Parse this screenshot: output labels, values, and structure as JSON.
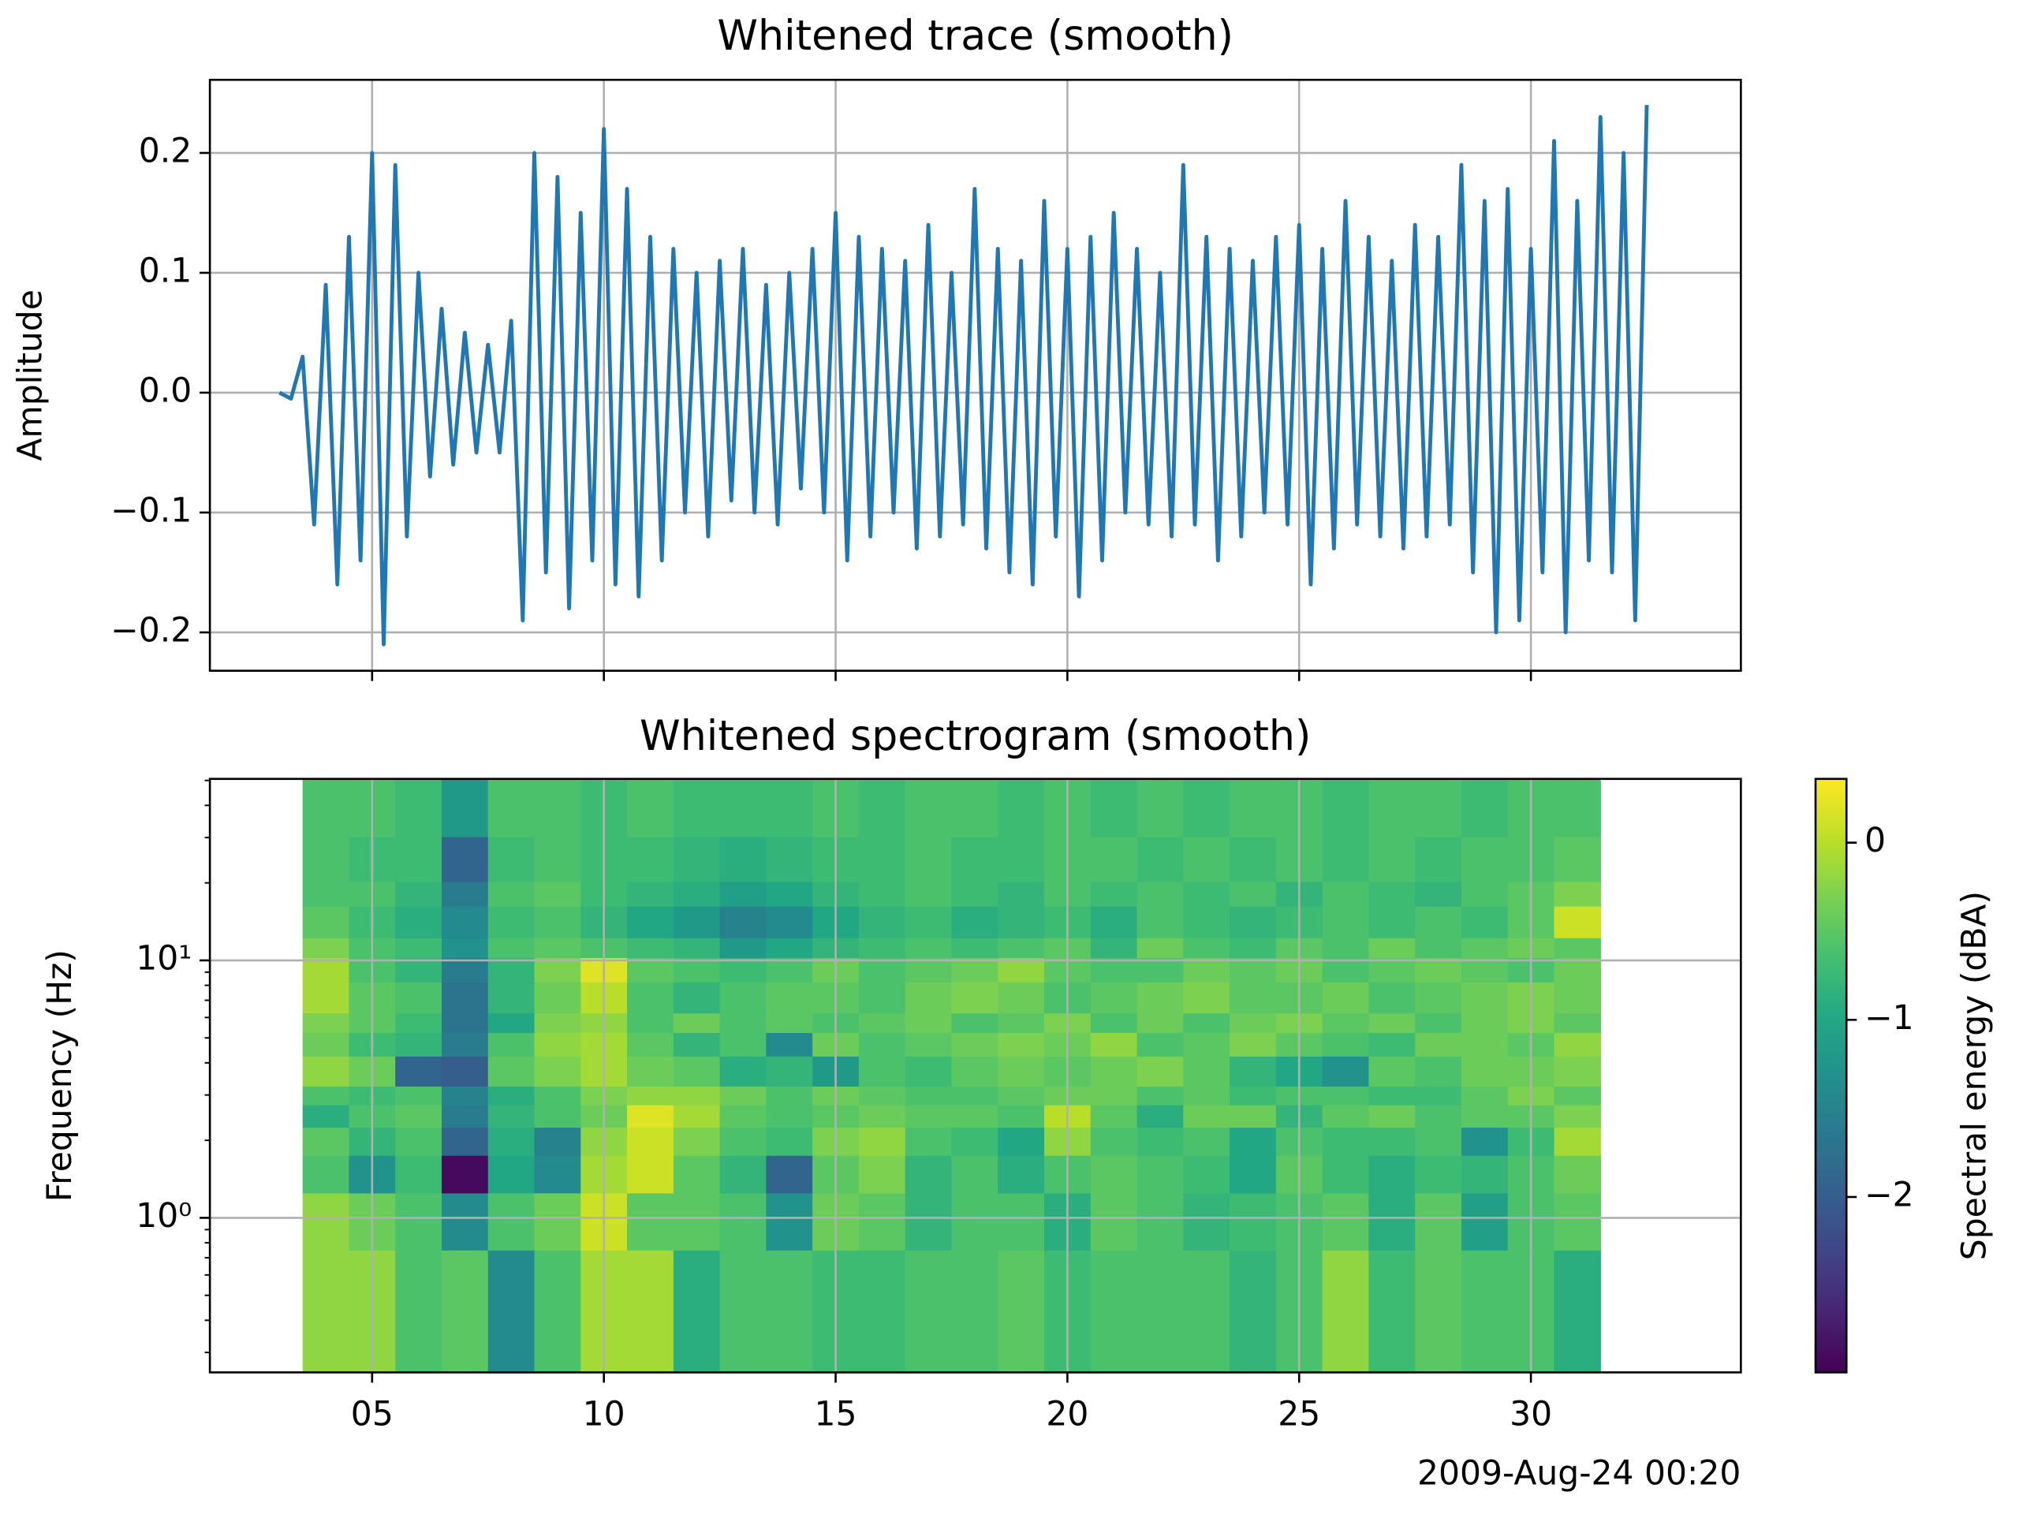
{
  "chart_data": [
    {
      "type": "line",
      "title": "Whitened trace (smooth)",
      "ylabel": "Amplitude",
      "color": "#1f77b4",
      "grid": true,
      "xlim": [
        1.5,
        34.53
      ],
      "ylim": [
        -0.232,
        0.261
      ],
      "xticks": [
        5,
        10,
        15,
        20,
        25,
        30
      ],
      "yticks": [
        {
          "value": -0.2,
          "label": "−0.2"
        },
        {
          "value": -0.1,
          "label": "−0.1"
        },
        {
          "value": 0,
          "label": "0.0"
        },
        0.1,
        0.2
      ],
      "x": [
        3.0,
        3.25,
        3.5,
        3.75,
        4.0,
        4.25,
        4.5,
        4.75,
        5.0,
        5.25,
        5.5,
        5.75,
        6.0,
        6.25,
        6.5,
        6.75,
        7.0,
        7.25,
        7.5,
        7.75,
        8.0,
        8.25,
        8.5,
        8.75,
        9.0,
        9.25,
        9.5,
        9.75,
        10.0,
        10.25,
        10.5,
        10.75,
        11.0,
        11.25,
        11.5,
        11.75,
        12.0,
        12.25,
        12.5,
        12.75,
        13.0,
        13.25,
        13.5,
        13.75,
        14.0,
        14.25,
        14.5,
        14.75,
        15.0,
        15.25,
        15.5,
        15.75,
        16.0,
        16.25,
        16.5,
        16.75,
        17.0,
        17.25,
        17.5,
        17.75,
        18.0,
        18.25,
        18.5,
        18.75,
        19.0,
        19.25,
        19.5,
        19.75,
        20.0,
        20.25,
        20.5,
        20.75,
        21.0,
        21.25,
        21.5,
        21.75,
        22.0,
        22.25,
        22.5,
        22.75,
        23.0,
        23.25,
        23.5,
        23.75,
        24.0,
        24.25,
        24.5,
        24.75,
        25.0,
        25.25,
        25.5,
        25.75,
        26.0,
        26.25,
        26.5,
        26.75,
        27.0,
        27.25,
        27.5,
        27.75,
        28.0,
        28.25,
        28.5,
        28.75,
        29.0,
        29.25,
        29.5,
        29.75,
        30.0,
        30.25,
        30.5,
        30.75,
        31.0,
        31.25,
        31.5,
        31.75,
        32.0,
        32.25,
        32.5
      ],
      "values": [
        0.0,
        -0.005,
        0.03,
        -0.11,
        0.09,
        -0.16,
        0.13,
        -0.14,
        0.2,
        -0.21,
        0.19,
        -0.12,
        0.1,
        -0.07,
        0.07,
        -0.06,
        0.05,
        -0.05,
        0.04,
        -0.05,
        0.06,
        -0.19,
        0.2,
        -0.15,
        0.18,
        -0.18,
        0.15,
        -0.14,
        0.22,
        -0.16,
        0.17,
        -0.17,
        0.13,
        -0.14,
        0.12,
        -0.1,
        0.1,
        -0.12,
        0.11,
        -0.09,
        0.12,
        -0.1,
        0.09,
        -0.11,
        0.1,
        -0.08,
        0.12,
        -0.1,
        0.15,
        -0.14,
        0.13,
        -0.12,
        0.12,
        -0.1,
        0.11,
        -0.13,
        0.14,
        -0.12,
        0.1,
        -0.11,
        0.17,
        -0.13,
        0.12,
        -0.15,
        0.11,
        -0.16,
        0.16,
        -0.12,
        0.12,
        -0.17,
        0.13,
        -0.14,
        0.15,
        -0.1,
        0.12,
        -0.11,
        0.1,
        -0.12,
        0.19,
        -0.11,
        0.13,
        -0.14,
        0.12,
        -0.12,
        0.11,
        -0.1,
        0.13,
        -0.11,
        0.14,
        -0.16,
        0.12,
        -0.13,
        0.16,
        -0.11,
        0.13,
        -0.12,
        0.11,
        -0.13,
        0.14,
        -0.12,
        0.13,
        -0.11,
        0.19,
        -0.15,
        0.16,
        -0.2,
        0.17,
        -0.19,
        0.12,
        -0.15,
        0.21,
        -0.2,
        0.16,
        -0.14,
        0.23,
        -0.15,
        0.2,
        -0.19,
        0.24
      ]
    },
    {
      "type": "heatmap",
      "title": "Whitened spectrogram (smooth)",
      "ylabel": "Frequency (Hz)",
      "ylog": true,
      "grid": true,
      "colormap": "viridis",
      "colorbar_label": "Spectral energy (dBA)",
      "x_offset_label": "2009-Aug-24 00:20",
      "xlim": [
        1.5,
        34.53
      ],
      "ylim": [
        0.251,
        50.7
      ],
      "clim": [
        -2.99,
        0.36
      ],
      "xticks": [
        {
          "value": 5,
          "label": "05"
        },
        10,
        15,
        20,
        25,
        30
      ],
      "yticks": [
        {
          "value": 1,
          "label": "10⁰"
        },
        {
          "value": 10,
          "label": "10¹"
        }
      ],
      "yminorticks": [
        0.3,
        0.4,
        0.5,
        0.6,
        0.7,
        0.8,
        0.9,
        2,
        3,
        4,
        5,
        6,
        7,
        8,
        9,
        20,
        30,
        40,
        50
      ],
      "cticks": [
        {
          "value": -2,
          "label": "−2"
        },
        {
          "value": -1,
          "label": "−1"
        },
        0
      ],
      "x_edges": [
        3.5,
        4.5,
        5.5,
        6.5,
        7.5,
        8.5,
        9.5,
        10.5,
        11.5,
        12.5,
        13.5,
        14.5,
        15.5,
        16.5,
        17.5,
        18.5,
        19.5,
        20.5,
        21.5,
        22.5,
        23.5,
        24.5,
        25.5,
        26.5,
        27.5,
        28.5,
        29.5,
        30.5,
        31.5
      ],
      "y_edges": [
        0.25,
        0.75,
        1.25,
        1.75,
        2.25,
        2.75,
        3.25,
        4.25,
        5.25,
        6.25,
        8.25,
        10.25,
        12.25,
        16.25,
        20.25,
        30.25,
        50.25
      ],
      "z": [
        [
          -0.2,
          -0.2,
          -0.6,
          -0.5,
          -1.4,
          -0.6,
          -0.1,
          -0.1,
          -0.9,
          -0.6,
          -0.6,
          -0.7,
          -0.7,
          -0.6,
          -0.6,
          -0.5,
          -0.7,
          -0.6,
          -0.6,
          -0.6,
          -0.8,
          -0.6,
          -0.2,
          -0.7,
          -0.5,
          -0.6,
          -0.6,
          -0.9
        ],
        [
          -0.2,
          -0.4,
          -0.6,
          -1.4,
          -0.6,
          -0.4,
          0.1,
          -0.5,
          -0.5,
          -0.6,
          -1.3,
          -0.4,
          -0.5,
          -0.8,
          -0.6,
          -0.6,
          -0.9,
          -0.5,
          -0.6,
          -0.8,
          -0.7,
          -0.6,
          -0.5,
          -0.9,
          -0.5,
          -1.1,
          -0.6,
          -0.5
        ],
        [
          -0.6,
          -1.3,
          -0.7,
          -2.9,
          -1.0,
          -1.4,
          -0.1,
          0.1,
          -0.5,
          -0.8,
          -1.9,
          -0.5,
          -0.3,
          -0.8,
          -0.6,
          -0.9,
          -0.6,
          -0.5,
          -0.6,
          -0.7,
          -1.0,
          -0.5,
          -0.7,
          -0.9,
          -0.7,
          -0.8,
          -0.6,
          -0.4
        ],
        [
          -0.5,
          -0.8,
          -0.6,
          -1.9,
          -0.9,
          -1.5,
          -0.2,
          0.1,
          -0.3,
          -0.6,
          -0.7,
          -0.3,
          -0.2,
          -0.6,
          -0.7,
          -1.0,
          -0.2,
          -0.6,
          -0.7,
          -0.6,
          -1.0,
          -0.6,
          -0.7,
          -0.7,
          -0.6,
          -1.3,
          -0.7,
          -0.1
        ],
        [
          -0.9,
          -0.6,
          -0.5,
          -1.6,
          -0.8,
          -0.6,
          -0.4,
          0.2,
          -0.1,
          -0.5,
          -0.6,
          -0.5,
          -0.4,
          -0.5,
          -0.5,
          -0.6,
          0.0,
          -0.5,
          -0.9,
          -0.4,
          -0.4,
          -0.8,
          -0.5,
          -0.4,
          -0.6,
          -0.5,
          -0.5,
          -0.3
        ],
        [
          -0.6,
          -0.7,
          -0.6,
          -1.5,
          -0.9,
          -0.6,
          -0.3,
          -0.2,
          -0.2,
          -0.4,
          -0.6,
          -0.4,
          -0.5,
          -0.6,
          -0.6,
          -0.5,
          -0.4,
          -0.4,
          -0.6,
          -0.5,
          -0.7,
          -0.6,
          -0.6,
          -0.7,
          -0.7,
          -0.5,
          -0.3,
          -0.5
        ],
        [
          -0.2,
          -0.4,
          -1.9,
          -2.0,
          -0.5,
          -0.3,
          -0.1,
          -0.4,
          -0.5,
          -0.9,
          -0.8,
          -1.2,
          -0.6,
          -0.7,
          -0.5,
          -0.4,
          -0.5,
          -0.4,
          -0.3,
          -0.5,
          -0.8,
          -1.0,
          -1.3,
          -0.5,
          -0.6,
          -0.4,
          -0.4,
          -0.3
        ],
        [
          -0.4,
          -0.7,
          -0.8,
          -1.6,
          -0.6,
          -0.2,
          -0.1,
          -0.5,
          -0.8,
          -0.6,
          -1.4,
          -0.4,
          -0.6,
          -0.5,
          -0.4,
          -0.3,
          -0.4,
          -0.2,
          -0.6,
          -0.5,
          -0.3,
          -0.5,
          -0.6,
          -0.7,
          -0.4,
          -0.4,
          -0.5,
          -0.2
        ],
        [
          -0.3,
          -0.5,
          -0.7,
          -1.7,
          -1.0,
          -0.3,
          -0.2,
          -0.6,
          -0.4,
          -0.6,
          -0.5,
          -0.6,
          -0.5,
          -0.4,
          -0.6,
          -0.5,
          -0.3,
          -0.6,
          -0.4,
          -0.6,
          -0.4,
          -0.3,
          -0.5,
          -0.4,
          -0.6,
          -0.4,
          -0.3,
          -0.5
        ],
        [
          -0.1,
          -0.5,
          -0.6,
          -1.7,
          -0.8,
          -0.4,
          0.0,
          -0.6,
          -0.8,
          -0.6,
          -0.5,
          -0.5,
          -0.6,
          -0.4,
          -0.3,
          -0.4,
          -0.6,
          -0.5,
          -0.4,
          -0.3,
          -0.5,
          -0.5,
          -0.4,
          -0.6,
          -0.5,
          -0.4,
          -0.3,
          -0.4
        ],
        [
          -0.1,
          -0.6,
          -0.8,
          -1.6,
          -0.8,
          -0.3,
          0.2,
          -0.5,
          -0.6,
          -0.7,
          -0.6,
          -0.4,
          -0.6,
          -0.5,
          -0.4,
          -0.2,
          -0.5,
          -0.6,
          -0.6,
          -0.4,
          -0.5,
          -0.4,
          -0.6,
          -0.5,
          -0.4,
          -0.5,
          -0.6,
          -0.4
        ],
        [
          -0.3,
          -0.6,
          -0.7,
          -1.3,
          -0.6,
          -0.5,
          -0.6,
          -0.7,
          -0.8,
          -1.2,
          -1.0,
          -0.8,
          -0.7,
          -0.6,
          -0.7,
          -0.6,
          -0.5,
          -0.8,
          -0.4,
          -0.6,
          -0.7,
          -0.5,
          -0.6,
          -0.4,
          -0.6,
          -0.5,
          -0.4,
          -0.5
        ],
        [
          -0.5,
          -0.7,
          -0.9,
          -1.4,
          -0.7,
          -0.6,
          -0.8,
          -1.0,
          -1.2,
          -1.5,
          -1.4,
          -1.0,
          -0.8,
          -0.7,
          -0.9,
          -0.8,
          -0.7,
          -0.9,
          -0.6,
          -0.7,
          -0.8,
          -0.7,
          -0.6,
          -0.7,
          -0.6,
          -0.7,
          -0.5,
          0.1
        ],
        [
          -0.6,
          -0.6,
          -0.8,
          -1.6,
          -0.6,
          -0.5,
          -0.7,
          -0.8,
          -0.9,
          -1.1,
          -1.0,
          -0.8,
          -0.7,
          -0.6,
          -0.7,
          -0.8,
          -0.6,
          -0.7,
          -0.6,
          -0.7,
          -0.6,
          -0.8,
          -0.6,
          -0.7,
          -0.8,
          -0.6,
          -0.5,
          -0.3
        ],
        [
          -0.6,
          -0.7,
          -0.7,
          -1.9,
          -0.7,
          -0.6,
          -0.7,
          -0.7,
          -0.8,
          -0.9,
          -0.8,
          -0.7,
          -0.7,
          -0.6,
          -0.7,
          -0.7,
          -0.6,
          -0.6,
          -0.7,
          -0.6,
          -0.7,
          -0.6,
          -0.7,
          -0.6,
          -0.7,
          -0.6,
          -0.6,
          -0.5
        ],
        [
          -0.6,
          -0.6,
          -0.7,
          -1.2,
          -0.6,
          -0.6,
          -0.7,
          -0.6,
          -0.7,
          -0.7,
          -0.7,
          -0.6,
          -0.7,
          -0.6,
          -0.6,
          -0.7,
          -0.6,
          -0.7,
          -0.6,
          -0.7,
          -0.6,
          -0.6,
          -0.7,
          -0.6,
          -0.6,
          -0.7,
          -0.6,
          -0.6
        ]
      ]
    }
  ]
}
